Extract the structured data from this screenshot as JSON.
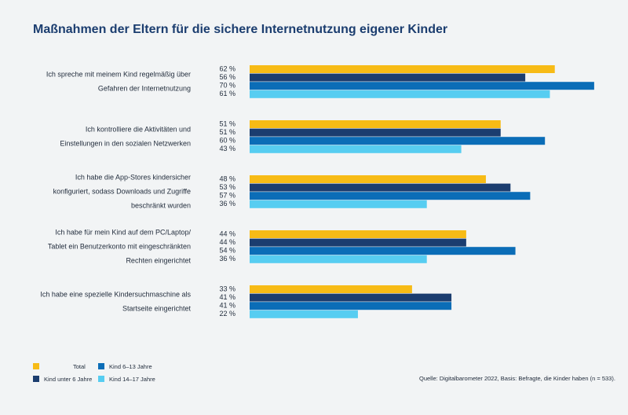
{
  "chart_data": {
    "type": "bar",
    "orientation": "horizontal",
    "title": "Maßnahmen der Eltern für die sichere Internetnutzung eigener Kinder",
    "categories": [
      [
        "Ich spreche mit meinem Kind regelmäßig über",
        "Gefahren der Internetnutzung"
      ],
      [
        "Ich kontrolliere die Aktivitäten und",
        "Einstellungen in den sozialen Netzwerken"
      ],
      [
        "Ich habe die App-Stores kindersicher",
        "konfiguriert, sodass Downloads und Zugriffe",
        "beschränkt wurden"
      ],
      [
        "Ich habe für mein Kind auf dem PC/Laptop/",
        "Tablet ein Benutzerkonto mit eingeschränkten",
        "Rechten eingerichtet"
      ],
      [
        "Ich habe eine spezielle Kindersuchmaschine als",
        "Startseite eingerichtet"
      ]
    ],
    "series": [
      {
        "name": "Total",
        "color": "#f7bb16",
        "values": [
          62,
          51,
          48,
          44,
          33
        ],
        "value_labels": [
          "62 %",
          "51 %",
          "48 %",
          "44 %",
          "33 %"
        ]
      },
      {
        "name": "Kind unter 6 Jahre",
        "color": "#1b3d6f",
        "values": [
          56,
          51,
          53,
          44,
          41
        ],
        "value_labels": [
          "56 %",
          "51 %",
          "53 %",
          "44 %",
          "41 %"
        ]
      },
      {
        "name": "Kind 6–13 Jahre",
        "color": "#0b6db7",
        "values": [
          70,
          60,
          57,
          54,
          41
        ],
        "value_labels": [
          "70 %",
          "60 %",
          "57 %",
          "54 %",
          "41 %"
        ]
      },
      {
        "name": "Kind 14–17 Jahre",
        "color": "#57cdf1",
        "values": [
          61,
          43,
          36,
          36,
          22
        ],
        "value_labels": [
          "61 %",
          "43 %",
          "36 %",
          "36 %",
          "22 %"
        ]
      }
    ],
    "source": "Quelle: Digitalbarometer 2022, Basis: Befragte, die Kinder haben (n = 533)."
  }
}
